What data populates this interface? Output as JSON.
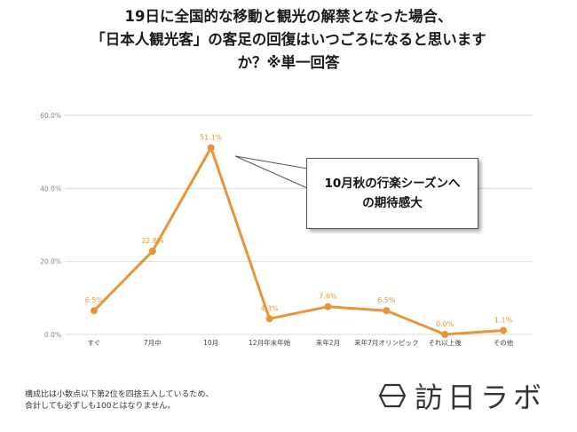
{
  "title_lines": [
    "19日に全国的な移動と観光の解禁となった場合、",
    "「日本人観光客」の客足の回復はいつごろになると思います",
    "か？※単一回答"
  ],
  "callout": {
    "lines": [
      "10月秋の行楽シーズンへ",
      "の期待感大"
    ]
  },
  "footnote": [
    "構成比は小数点以下第2位を四捨五入しているため、",
    "合計しても必ずしも100とはなりません。"
  ],
  "logo": {
    "text": "訪日ラボ",
    "icon": "box-icon"
  },
  "colors": {
    "line": "#e8953a",
    "grid": "#d9d9d9",
    "axis_text": "#888888"
  },
  "chart_data": {
    "type": "line",
    "categories": [
      "すぐ",
      "7月中",
      "10月",
      "12月年末年始",
      "来年2月",
      "来年7月オリンピック",
      "それ以上後",
      "その他"
    ],
    "values": [
      6.5,
      22.8,
      51.1,
      4.3,
      7.6,
      6.5,
      0.0,
      1.1
    ],
    "value_labels": [
      "6.5%",
      "22.8%",
      "51.1%",
      "4.3%",
      "7.6%",
      "6.5%",
      "0.0%",
      "1.1%"
    ],
    "ylim": [
      0,
      60
    ],
    "yticks": [
      0,
      20,
      40,
      60
    ],
    "ytick_labels": [
      "0.0%",
      "20.0%",
      "40.0%",
      "60.0%"
    ],
    "grid": true,
    "xlabel": "",
    "ylabel": ""
  }
}
